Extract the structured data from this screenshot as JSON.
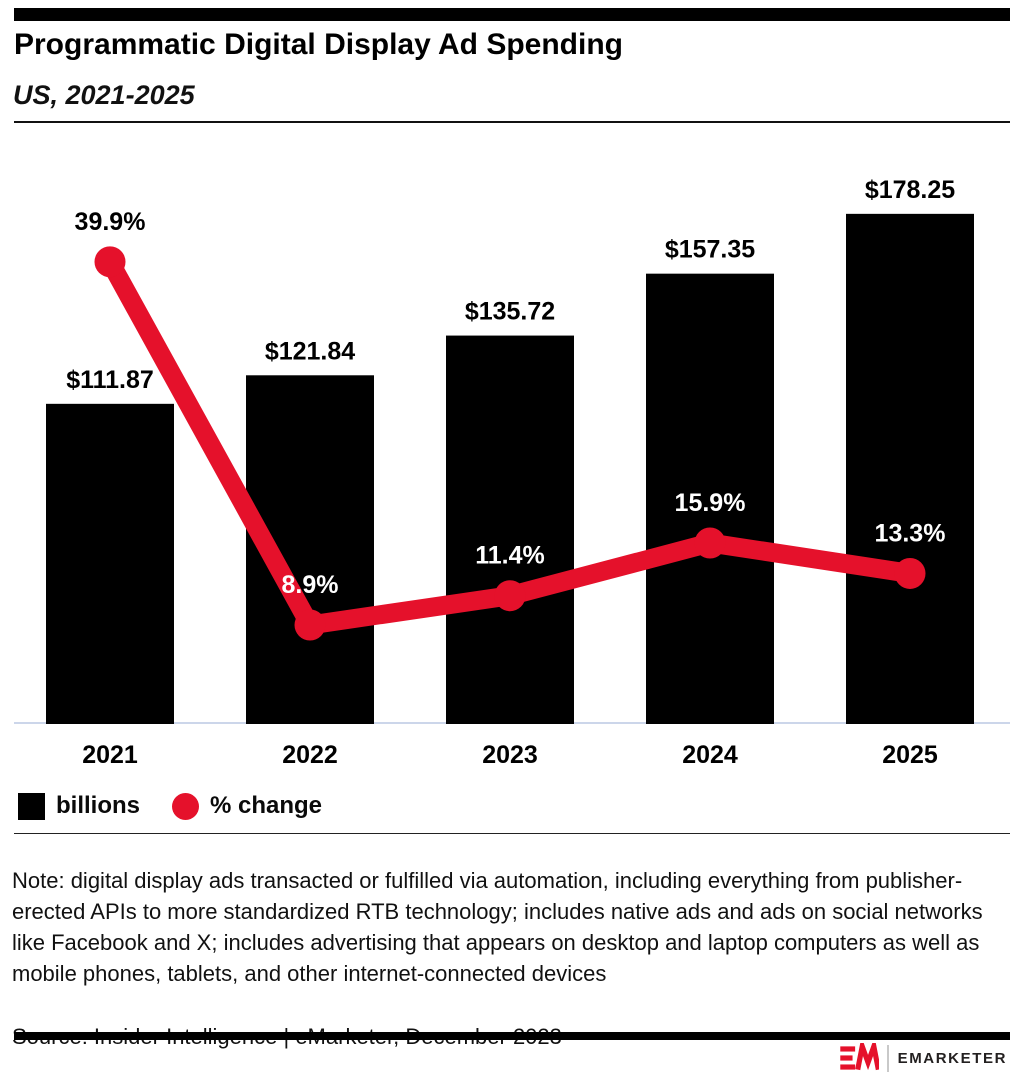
{
  "header": {
    "title": "Programmatic Digital Display Ad Spending",
    "subtitle": "US, 2021-2025"
  },
  "chart_data": {
    "type": "bar+line",
    "title": "Programmatic Digital Display Ad Spending",
    "subtitle": "US, 2021-2025",
    "categories": [
      "2021",
      "2022",
      "2023",
      "2024",
      "2025"
    ],
    "series": [
      {
        "name": "billions",
        "type": "bar",
        "unit": "US$ billions",
        "values": [
          111.87,
          121.84,
          135.72,
          157.35,
          178.25
        ],
        "labels": [
          "$111.87",
          "$121.84",
          "$135.72",
          "$157.35",
          "$178.25"
        ]
      },
      {
        "name": "% change",
        "type": "line",
        "unit": "percent change year over year",
        "values": [
          39.9,
          8.9,
          11.4,
          15.9,
          13.3
        ],
        "labels": [
          "39.9%",
          "8.9%",
          "11.4%",
          "15.9%",
          "13.3%"
        ]
      }
    ],
    "legend_position": "bottom-left",
    "grid": false,
    "xlabel": "",
    "ylabel": ""
  },
  "colors": {
    "accent_red": "#e5112b",
    "bar_black": "#000000",
    "axis_line": "#ccd6ea",
    "pct_label_on_bar": "#ffffff",
    "pct_label_on_white": "#000000"
  },
  "footer": {
    "note": "Note: digital display ads transacted or fulfilled via automation, including everything from publisher-erected APIs to more standardized RTB technology; includes native ads and ads on social networks like Facebook and X; includes advertising that appears on desktop and laptop computers as well as mobile phones, tablets, and other internet-connected devices",
    "source": "Source: Insider Intelligence | eMarketer, December 2023",
    "logo": {
      "mark": "EM",
      "wordmark": "EMARKETER"
    }
  }
}
